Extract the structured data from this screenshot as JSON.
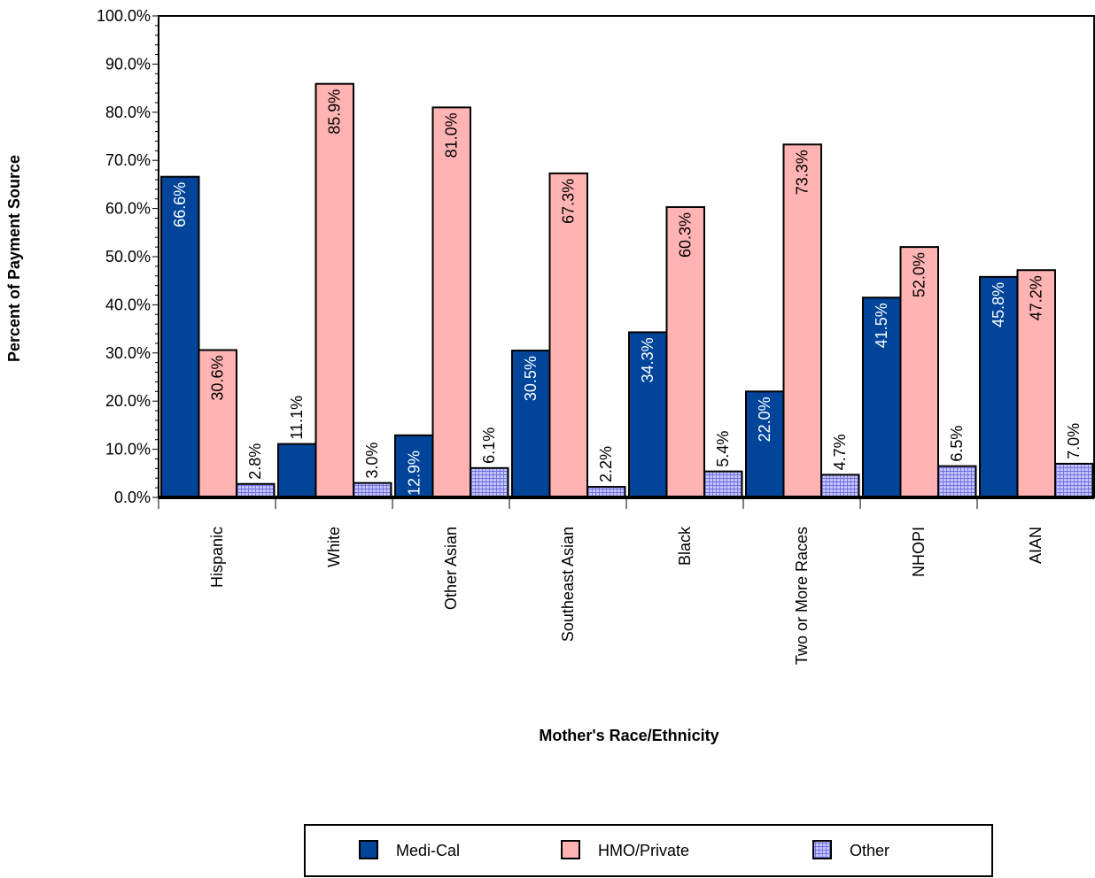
{
  "chart_data": {
    "type": "bar",
    "xlabel": "Mother's Race/Ethnicity",
    "ylabel": "Percent of Payment Source",
    "ylim": [
      0,
      100
    ],
    "yticks": [
      "0.0%",
      "10.0%",
      "20.0%",
      "30.0%",
      "40.0%",
      "50.0%",
      "60.0%",
      "70.0%",
      "80.0%",
      "90.0%",
      "100.0%"
    ],
    "categories": [
      "Hispanic",
      "White",
      "Other Asian",
      "Southeast Asian",
      "Black",
      "Two or More Races",
      "NHOPI",
      "AIAN"
    ],
    "series": [
      {
        "name": "Medi-Cal",
        "color": "#00459a",
        "values": [
          66.6,
          11.1,
          12.9,
          30.5,
          34.3,
          22.0,
          41.5,
          45.8
        ],
        "labels": [
          "66.6%",
          "11.1%",
          "12.9%",
          "30.5%",
          "34.3%",
          "22.0%",
          "41.5%",
          "45.8%"
        ]
      },
      {
        "name": "HMO/Private",
        "color": "#ffb3b3",
        "values": [
          30.6,
          85.9,
          81.0,
          67.3,
          60.3,
          73.3,
          52.0,
          47.2
        ],
        "labels": [
          "30.6%",
          "85.9%",
          "81.0%",
          "67.3%",
          "60.3%",
          "73.3%",
          "52.0%",
          "47.2%"
        ]
      },
      {
        "name": "Other",
        "color": "#b3b3ff",
        "pattern": "grid",
        "values": [
          2.8,
          3.0,
          6.1,
          2.2,
          5.4,
          4.7,
          6.5,
          7.0
        ],
        "labels": [
          "2.8%",
          "3.0%",
          "6.1%",
          "2.2%",
          "5.4%",
          "4.7%",
          "6.5%",
          "7.0%"
        ]
      }
    ],
    "legend": {
      "position": "bottom"
    },
    "grid": false
  }
}
